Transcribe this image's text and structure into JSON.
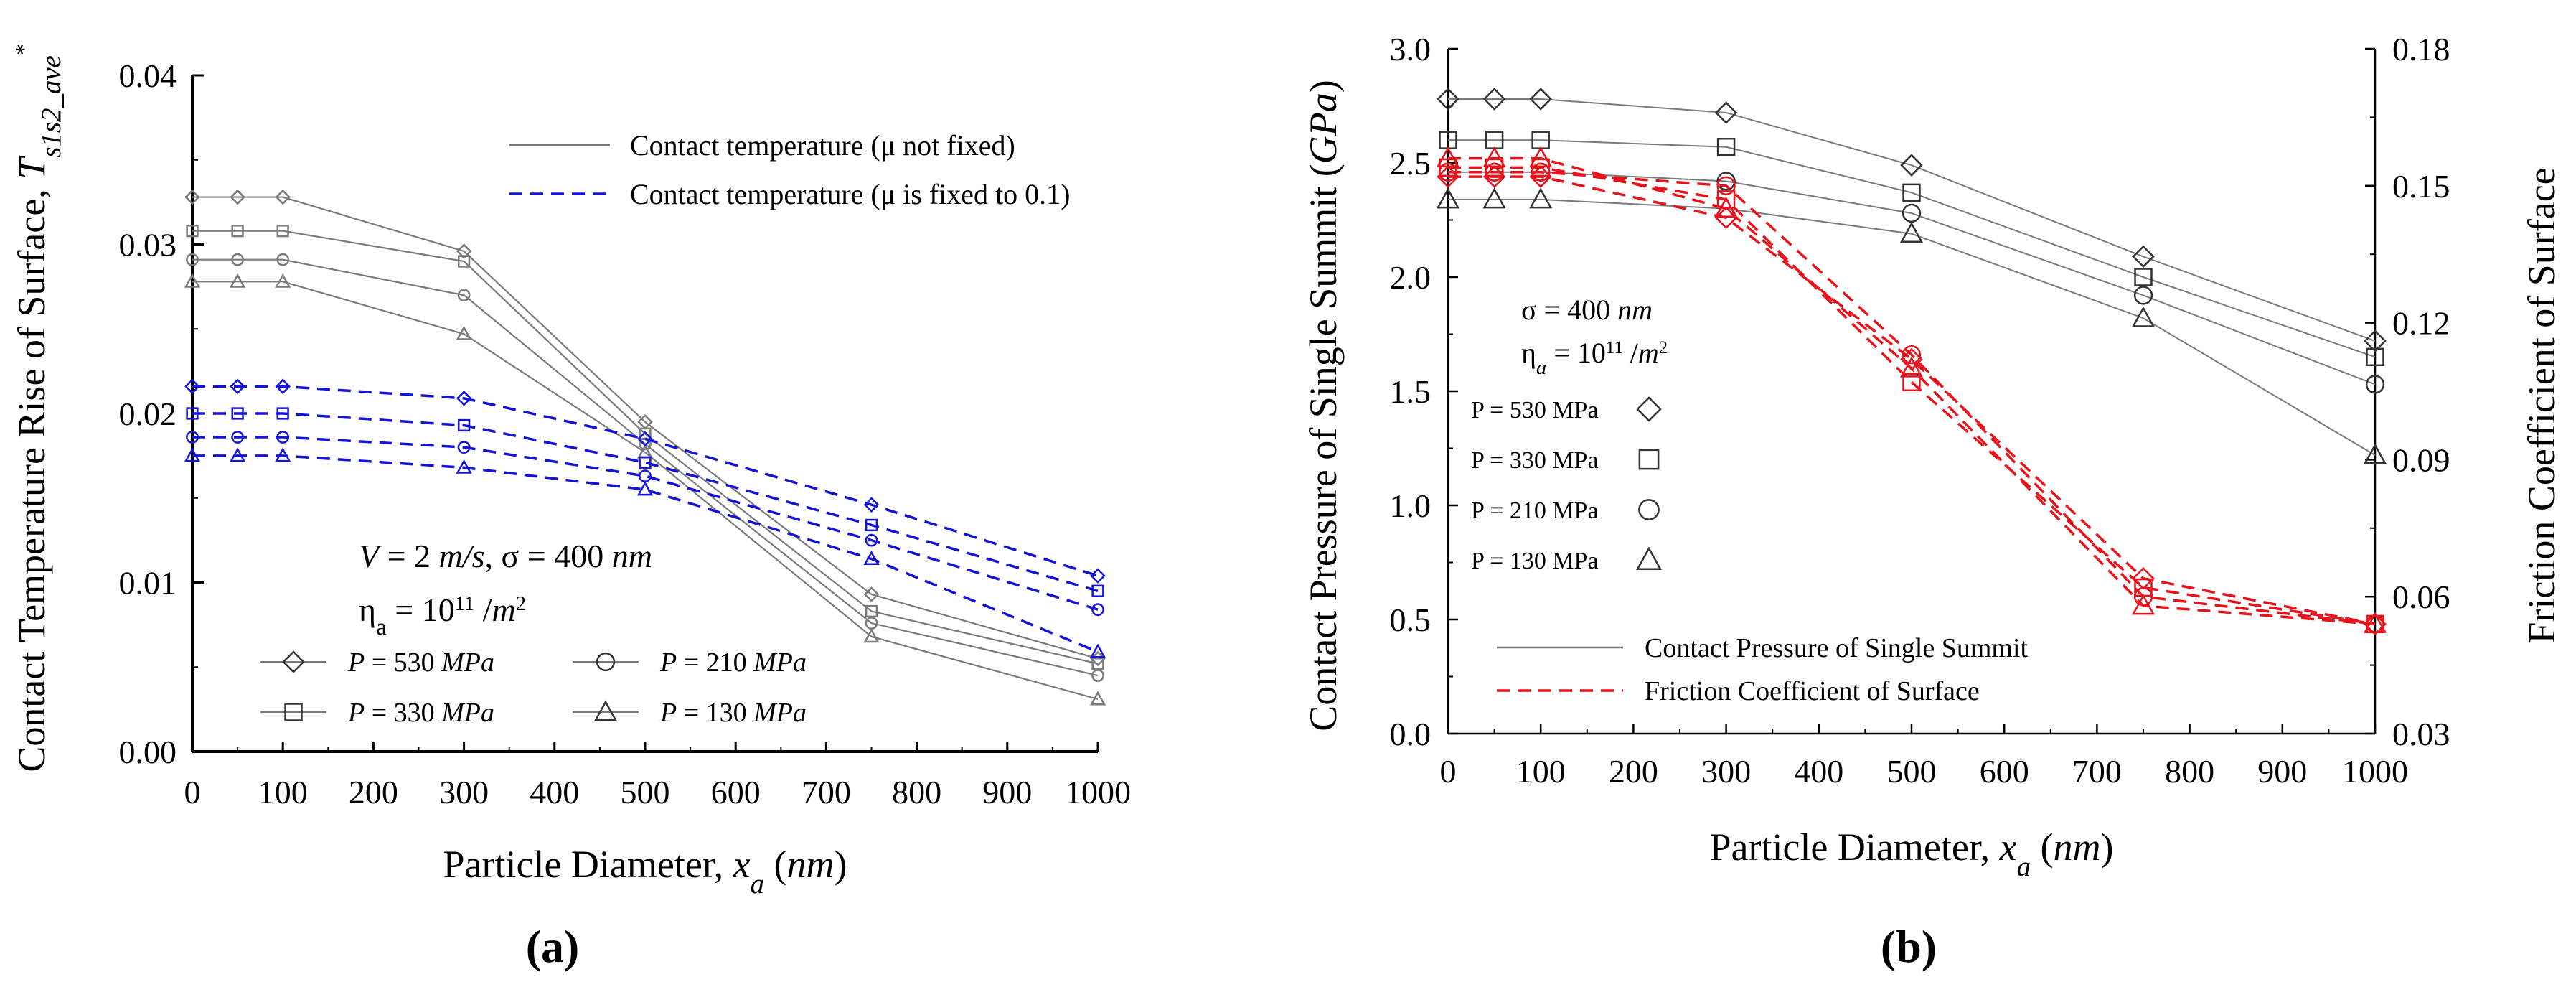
{
  "chart_data": [
    {
      "panel_label": "(a)",
      "type": "line",
      "xlabel": "Particle Diameter, x_a (nm)",
      "ylabel": "Contact Temperature Rise of Surface, T_s1s2_ave*",
      "x": [
        0,
        50,
        100,
        300,
        500,
        750,
        1000
      ],
      "xticks": [
        0,
        100,
        200,
        300,
        400,
        500,
        600,
        700,
        800,
        900,
        1000
      ],
      "xlim": [
        0,
        1000
      ],
      "ylim": [
        0,
        0.04
      ],
      "yticks": [
        "0.00",
        "0.01",
        "0.02",
        "0.03",
        "0.04"
      ],
      "legend_lines": [
        {
          "label": "Contact temperature (μ not fixed)",
          "style": "solid",
          "color": "#7a7a7a"
        },
        {
          "label": "Contact temperature (μ is fixed to 0.1)",
          "style": "dashed",
          "color": "#1414d8"
        }
      ],
      "annotations": [
        "V = 2 m/s, σ = 400 nm",
        "ηa = 10^11 /m^2"
      ],
      "marker_legend": [
        {
          "label": "P = 530 MPa",
          "marker": "diamond"
        },
        {
          "label": "P = 210 MPa",
          "marker": "circle"
        },
        {
          "label": "P = 330 MPa",
          "marker": "square"
        },
        {
          "label": "P = 130 MPa",
          "marker": "triangle"
        }
      ],
      "series": [
        {
          "group": "μ not fixed",
          "pressure": "P = 530 MPa",
          "marker": "diamond",
          "color": "#7a7a7a",
          "style": "solid",
          "values": [
            0.0328,
            0.0328,
            0.0328,
            0.0296,
            0.0195,
            0.0093,
            0.0055
          ]
        },
        {
          "group": "μ not fixed",
          "pressure": "P = 330 MPa",
          "marker": "square",
          "color": "#7a7a7a",
          "style": "solid",
          "values": [
            0.0308,
            0.0308,
            0.0308,
            0.029,
            0.0188,
            0.0083,
            0.0052
          ]
        },
        {
          "group": "μ not fixed",
          "pressure": "P = 210 MPa",
          "marker": "circle",
          "color": "#7a7a7a",
          "style": "solid",
          "values": [
            0.0291,
            0.0291,
            0.0291,
            0.027,
            0.0182,
            0.0076,
            0.0045
          ]
        },
        {
          "group": "μ not fixed",
          "pressure": "P = 130 MPa",
          "marker": "triangle",
          "color": "#7a7a7a",
          "style": "solid",
          "values": [
            0.0278,
            0.0278,
            0.0278,
            0.0247,
            0.0177,
            0.0068,
            0.0031
          ]
        },
        {
          "group": "μ is fixed to 0.1",
          "pressure": "P = 530 MPa",
          "marker": "diamond",
          "color": "#1414d8",
          "style": "dashed",
          "values": [
            0.0216,
            0.0216,
            0.0216,
            0.0209,
            0.0185,
            0.0146,
            0.0104
          ]
        },
        {
          "group": "μ is fixed to 0.1",
          "pressure": "P = 330 MPa",
          "marker": "square",
          "color": "#1414d8",
          "style": "dashed",
          "values": [
            0.02,
            0.02,
            0.02,
            0.0193,
            0.0171,
            0.0134,
            0.0095
          ]
        },
        {
          "group": "μ is fixed to 0.1",
          "pressure": "P = 210 MPa",
          "marker": "circle",
          "color": "#1414d8",
          "style": "dashed",
          "values": [
            0.0186,
            0.0186,
            0.0186,
            0.018,
            0.0163,
            0.0125,
            0.0084
          ]
        },
        {
          "group": "μ is fixed to 0.1",
          "pressure": "P = 130 MPa",
          "marker": "triangle",
          "color": "#1414d8",
          "style": "dashed",
          "values": [
            0.0175,
            0.0175,
            0.0175,
            0.0168,
            0.0155,
            0.0114,
            0.0059
          ]
        }
      ]
    },
    {
      "panel_label": "(b)",
      "type": "line",
      "xlabel": "Particle Diameter, x_a (nm)",
      "ylabel": "Contact Pressure of Single Summit (GPa)",
      "y2label": "Friction Coefficient of Surface",
      "x": [
        0,
        50,
        100,
        300,
        500,
        750,
        1000
      ],
      "xticks": [
        0,
        100,
        200,
        300,
        400,
        500,
        600,
        700,
        800,
        900,
        1000
      ],
      "xlim": [
        0,
        1000
      ],
      "ylim": [
        0,
        3.0
      ],
      "yticks": [
        "0.0",
        "0.5",
        "1.0",
        "1.5",
        "2.0",
        "2.5",
        "3.0"
      ],
      "y2lim": [
        0.03,
        0.18
      ],
      "y2ticks": [
        "0.03",
        "0.06",
        "0.09",
        "0.12",
        "0.15",
        "0.18"
      ],
      "annotations": [
        "σ = 400 nm",
        "ηa = 10^11 /m^2"
      ],
      "marker_legend": [
        {
          "label": "P = 530 MPa",
          "marker": "diamond"
        },
        {
          "label": "P = 330 MPa",
          "marker": "square"
        },
        {
          "label": "P = 210 MPa",
          "marker": "circle"
        },
        {
          "label": "P = 130 MPa",
          "marker": "triangle"
        }
      ],
      "legend_lines": [
        {
          "label": "Contact Pressure of Single Summit",
          "style": "solid",
          "color": "#7a7a7a"
        },
        {
          "label": "Friction Coefficient of Surface",
          "style": "dashed",
          "color": "#e8121a"
        }
      ],
      "series": [
        {
          "group": "Contact Pressure of Single Summit",
          "pressure": "P = 530 MPa",
          "axis": "left",
          "marker": "diamond",
          "color": "#7a7a7a",
          "style": "solid",
          "values": [
            2.78,
            2.78,
            2.78,
            2.72,
            2.49,
            2.09,
            1.72
          ]
        },
        {
          "group": "Contact Pressure of Single Summit",
          "pressure": "P = 330 MPa",
          "axis": "left",
          "marker": "square",
          "color": "#7a7a7a",
          "style": "solid",
          "values": [
            2.6,
            2.6,
            2.6,
            2.57,
            2.37,
            2.0,
            1.65
          ]
        },
        {
          "group": "Contact Pressure of Single Summit",
          "pressure": "P = 210 MPa",
          "axis": "left",
          "marker": "circle",
          "color": "#7a7a7a",
          "style": "solid",
          "values": [
            2.46,
            2.46,
            2.46,
            2.42,
            2.28,
            1.92,
            1.53
          ]
        },
        {
          "group": "Contact Pressure of Single Summit",
          "pressure": "P = 130 MPa",
          "axis": "left",
          "marker": "triangle",
          "color": "#7a7a7a",
          "style": "solid",
          "values": [
            2.34,
            2.34,
            2.34,
            2.3,
            2.19,
            1.82,
            1.22
          ]
        },
        {
          "group": "Friction Coefficient of Surface",
          "pressure": "P = 530 MPa",
          "axis": "right",
          "marker": "diamond",
          "color": "#e8121a",
          "style": "dashed",
          "values": [
            0.152,
            0.152,
            0.152,
            0.143,
            0.112,
            0.064,
            0.054
          ]
        },
        {
          "group": "Friction Coefficient of Surface",
          "pressure": "P = 330 MPa",
          "axis": "right",
          "marker": "square",
          "color": "#e8121a",
          "style": "dashed",
          "values": [
            0.154,
            0.154,
            0.154,
            0.147,
            0.107,
            0.062,
            0.054
          ]
        },
        {
          "group": "Friction Coefficient of Surface",
          "pressure": "P = 210 MPa",
          "axis": "right",
          "marker": "circle",
          "color": "#e8121a",
          "style": "dashed",
          "values": [
            0.153,
            0.153,
            0.153,
            0.15,
            0.113,
            0.06,
            0.054
          ]
        },
        {
          "group": "Friction Coefficient of Surface",
          "pressure": "P = 130 MPa",
          "axis": "right",
          "marker": "triangle",
          "color": "#e8121a",
          "style": "dashed",
          "values": [
            0.156,
            0.156,
            0.156,
            0.145,
            0.11,
            0.058,
            0.054
          ]
        }
      ]
    }
  ]
}
